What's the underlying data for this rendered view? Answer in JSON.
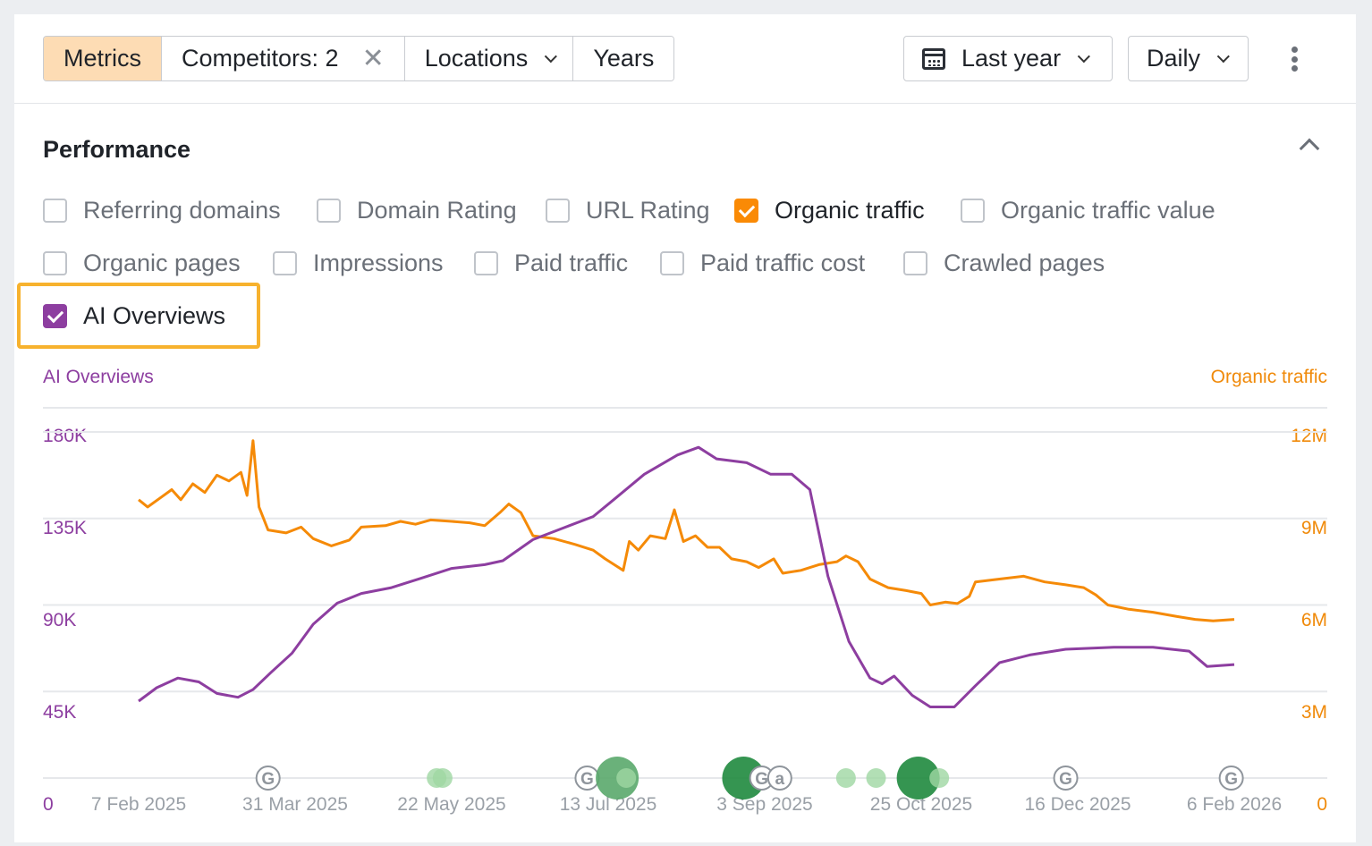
{
  "toolbar": {
    "metrics_label": "Metrics",
    "competitors_label": "Competitors: 2",
    "locations_label": "Locations",
    "years_label": "Years",
    "date_range_label": "Last year",
    "granularity_label": "Daily"
  },
  "section": {
    "title": "Performance"
  },
  "metric_options": [
    {
      "label": "Referring domains",
      "checked": false
    },
    {
      "label": "Domain Rating",
      "checked": false
    },
    {
      "label": "URL Rating",
      "checked": false
    },
    {
      "label": "Organic traffic",
      "checked": true,
      "color": "#fa8a05"
    },
    {
      "label": "Organic traffic value",
      "checked": false
    },
    {
      "label": "Organic pages",
      "checked": false
    },
    {
      "label": "Impressions",
      "checked": false
    },
    {
      "label": "Paid traffic",
      "checked": false
    },
    {
      "label": "Paid traffic cost",
      "checked": false
    },
    {
      "label": "Crawled pages",
      "checked": false
    },
    {
      "label": "AI Overviews",
      "checked": true,
      "color": "#8d3ea0"
    }
  ],
  "chart_data": {
    "type": "line",
    "grid": true,
    "left_axis": {
      "title": "AI Overviews",
      "ticks": [
        "0",
        "45K",
        "90K",
        "135K",
        "180K"
      ],
      "ylim": [
        0,
        180000
      ]
    },
    "right_axis": {
      "title": "Organic traffic",
      "ticks": [
        "0",
        "3M",
        "6M",
        "9M",
        "12M"
      ],
      "ylim": [
        0,
        12000000
      ]
    },
    "x_ticks": [
      "7 Feb 2025",
      "31 Mar 2025",
      "22 May 2025",
      "13 Jul 2025",
      "3 Sep 2025",
      "25 Oct 2025",
      "16 Dec 2025",
      "6 Feb 2026"
    ],
    "x_range": [
      "2025-02-07",
      "2026-02-06"
    ],
    "series": [
      {
        "name": "Organic traffic",
        "axis": "right",
        "color": "#f58a07",
        "points": [
          [
            "2025-02-07",
            9650000
          ],
          [
            "2025-02-10",
            9400000
          ],
          [
            "2025-02-14",
            9700000
          ],
          [
            "2025-02-18",
            10000000
          ],
          [
            "2025-02-21",
            9650000
          ],
          [
            "2025-02-25",
            10200000
          ],
          [
            "2025-03-01",
            9900000
          ],
          [
            "2025-03-05",
            10500000
          ],
          [
            "2025-03-09",
            10300000
          ],
          [
            "2025-03-13",
            10600000
          ],
          [
            "2025-03-15",
            9800000
          ],
          [
            "2025-03-17",
            11700000
          ],
          [
            "2025-03-19",
            9400000
          ],
          [
            "2025-03-22",
            8600000
          ],
          [
            "2025-03-28",
            8500000
          ],
          [
            "2025-04-02",
            8700000
          ],
          [
            "2025-04-06",
            8300000
          ],
          [
            "2025-04-12",
            8050000
          ],
          [
            "2025-04-18",
            8250000
          ],
          [
            "2025-04-22",
            8700000
          ],
          [
            "2025-04-30",
            8750000
          ],
          [
            "2025-05-05",
            8900000
          ],
          [
            "2025-05-10",
            8800000
          ],
          [
            "2025-05-15",
            8950000
          ],
          [
            "2025-05-22",
            8900000
          ],
          [
            "2025-05-28",
            8850000
          ],
          [
            "2025-06-02",
            8750000
          ],
          [
            "2025-06-07",
            9200000
          ],
          [
            "2025-06-10",
            9500000
          ],
          [
            "2025-06-14",
            9200000
          ],
          [
            "2025-06-18",
            8400000
          ],
          [
            "2025-06-25",
            8300000
          ],
          [
            "2025-07-02",
            8100000
          ],
          [
            "2025-07-08",
            7900000
          ],
          [
            "2025-07-12",
            7600000
          ],
          [
            "2025-07-18",
            7200000
          ],
          [
            "2025-07-20",
            8200000
          ],
          [
            "2025-07-23",
            7900000
          ],
          [
            "2025-07-27",
            8400000
          ],
          [
            "2025-08-01",
            8300000
          ],
          [
            "2025-08-04",
            9300000
          ],
          [
            "2025-08-07",
            8200000
          ],
          [
            "2025-08-11",
            8400000
          ],
          [
            "2025-08-15",
            8000000
          ],
          [
            "2025-08-19",
            8000000
          ],
          [
            "2025-08-23",
            7600000
          ],
          [
            "2025-08-28",
            7500000
          ],
          [
            "2025-09-01",
            7300000
          ],
          [
            "2025-09-06",
            7600000
          ],
          [
            "2025-09-09",
            7100000
          ],
          [
            "2025-09-15",
            7200000
          ],
          [
            "2025-09-21",
            7400000
          ],
          [
            "2025-09-27",
            7500000
          ],
          [
            "2025-09-30",
            7700000
          ],
          [
            "2025-10-04",
            7500000
          ],
          [
            "2025-10-08",
            6900000
          ],
          [
            "2025-10-14",
            6600000
          ],
          [
            "2025-10-20",
            6500000
          ],
          [
            "2025-10-25",
            6400000
          ],
          [
            "2025-10-28",
            6000000
          ],
          [
            "2025-11-02",
            6100000
          ],
          [
            "2025-11-06",
            6050000
          ],
          [
            "2025-11-10",
            6300000
          ],
          [
            "2025-11-12",
            6800000
          ],
          [
            "2025-11-20",
            6900000
          ],
          [
            "2025-11-28",
            7000000
          ],
          [
            "2025-12-05",
            6800000
          ],
          [
            "2025-12-12",
            6700000
          ],
          [
            "2025-12-18",
            6600000
          ],
          [
            "2025-12-22",
            6350000
          ],
          [
            "2025-12-26",
            6000000
          ],
          [
            "2026-01-02",
            5850000
          ],
          [
            "2026-01-10",
            5750000
          ],
          [
            "2026-01-18",
            5600000
          ],
          [
            "2026-01-24",
            5500000
          ],
          [
            "2026-01-30",
            5450000
          ],
          [
            "2026-02-06",
            5500000
          ]
        ]
      },
      {
        "name": "AI Overviews",
        "axis": "left",
        "color": "#8d3ea0",
        "points": [
          [
            "2025-02-07",
            40000
          ],
          [
            "2025-02-13",
            47000
          ],
          [
            "2025-02-20",
            52000
          ],
          [
            "2025-02-27",
            50000
          ],
          [
            "2025-03-05",
            44000
          ],
          [
            "2025-03-12",
            42000
          ],
          [
            "2025-03-17",
            46000
          ],
          [
            "2025-03-23",
            55000
          ],
          [
            "2025-03-30",
            65000
          ],
          [
            "2025-04-06",
            80000
          ],
          [
            "2025-04-14",
            91000
          ],
          [
            "2025-04-22",
            96000
          ],
          [
            "2025-05-02",
            99000
          ],
          [
            "2025-05-12",
            104000
          ],
          [
            "2025-05-22",
            109000
          ],
          [
            "2025-06-02",
            111000
          ],
          [
            "2025-06-08",
            113000
          ],
          [
            "2025-06-18",
            124000
          ],
          [
            "2025-06-28",
            130000
          ],
          [
            "2025-07-08",
            136000
          ],
          [
            "2025-07-15",
            145000
          ],
          [
            "2025-07-25",
            158000
          ],
          [
            "2025-08-05",
            168000
          ],
          [
            "2025-08-12",
            172000
          ],
          [
            "2025-08-18",
            166000
          ],
          [
            "2025-08-28",
            164000
          ],
          [
            "2025-09-05",
            158000
          ],
          [
            "2025-09-12",
            158000
          ],
          [
            "2025-09-18",
            150000
          ],
          [
            "2025-09-24",
            105000
          ],
          [
            "2025-10-01",
            71000
          ],
          [
            "2025-10-08",
            52000
          ],
          [
            "2025-10-12",
            49000
          ],
          [
            "2025-10-16",
            53000
          ],
          [
            "2025-10-22",
            43000
          ],
          [
            "2025-10-28",
            37000
          ],
          [
            "2025-11-05",
            37000
          ],
          [
            "2025-11-12",
            48000
          ],
          [
            "2025-11-20",
            60000
          ],
          [
            "2025-11-30",
            64000
          ],
          [
            "2025-12-12",
            67000
          ],
          [
            "2025-12-28",
            68000
          ],
          [
            "2026-01-10",
            68000
          ],
          [
            "2026-01-22",
            66000
          ],
          [
            "2026-01-28",
            58000
          ],
          [
            "2026-02-06",
            59000
          ]
        ]
      }
    ],
    "annotations": [
      {
        "type": "google-update",
        "date": "2025-03-22"
      },
      {
        "type": "event",
        "date": "2025-05-17",
        "size": "small",
        "shade": "light"
      },
      {
        "type": "event",
        "date": "2025-05-19",
        "size": "small",
        "shade": "light"
      },
      {
        "type": "google-update",
        "date": "2025-07-06"
      },
      {
        "type": "event",
        "date": "2025-07-16",
        "size": "large",
        "shade": "medium"
      },
      {
        "type": "event",
        "date": "2025-07-19",
        "size": "small",
        "shade": "light"
      },
      {
        "type": "event",
        "date": "2025-08-27",
        "size": "large",
        "shade": "dark"
      },
      {
        "type": "google-update",
        "date": "2025-09-02"
      },
      {
        "type": "amazon-update",
        "date": "2025-09-08"
      },
      {
        "type": "event",
        "date": "2025-09-30",
        "size": "small",
        "shade": "light"
      },
      {
        "type": "event",
        "date": "2025-10-10",
        "size": "small",
        "shade": "light"
      },
      {
        "type": "event",
        "date": "2025-10-24",
        "size": "large",
        "shade": "dark"
      },
      {
        "type": "event",
        "date": "2025-10-31",
        "size": "small",
        "shade": "light"
      },
      {
        "type": "google-update",
        "date": "2025-12-12"
      },
      {
        "type": "google-update",
        "date": "2026-02-05"
      }
    ]
  }
}
